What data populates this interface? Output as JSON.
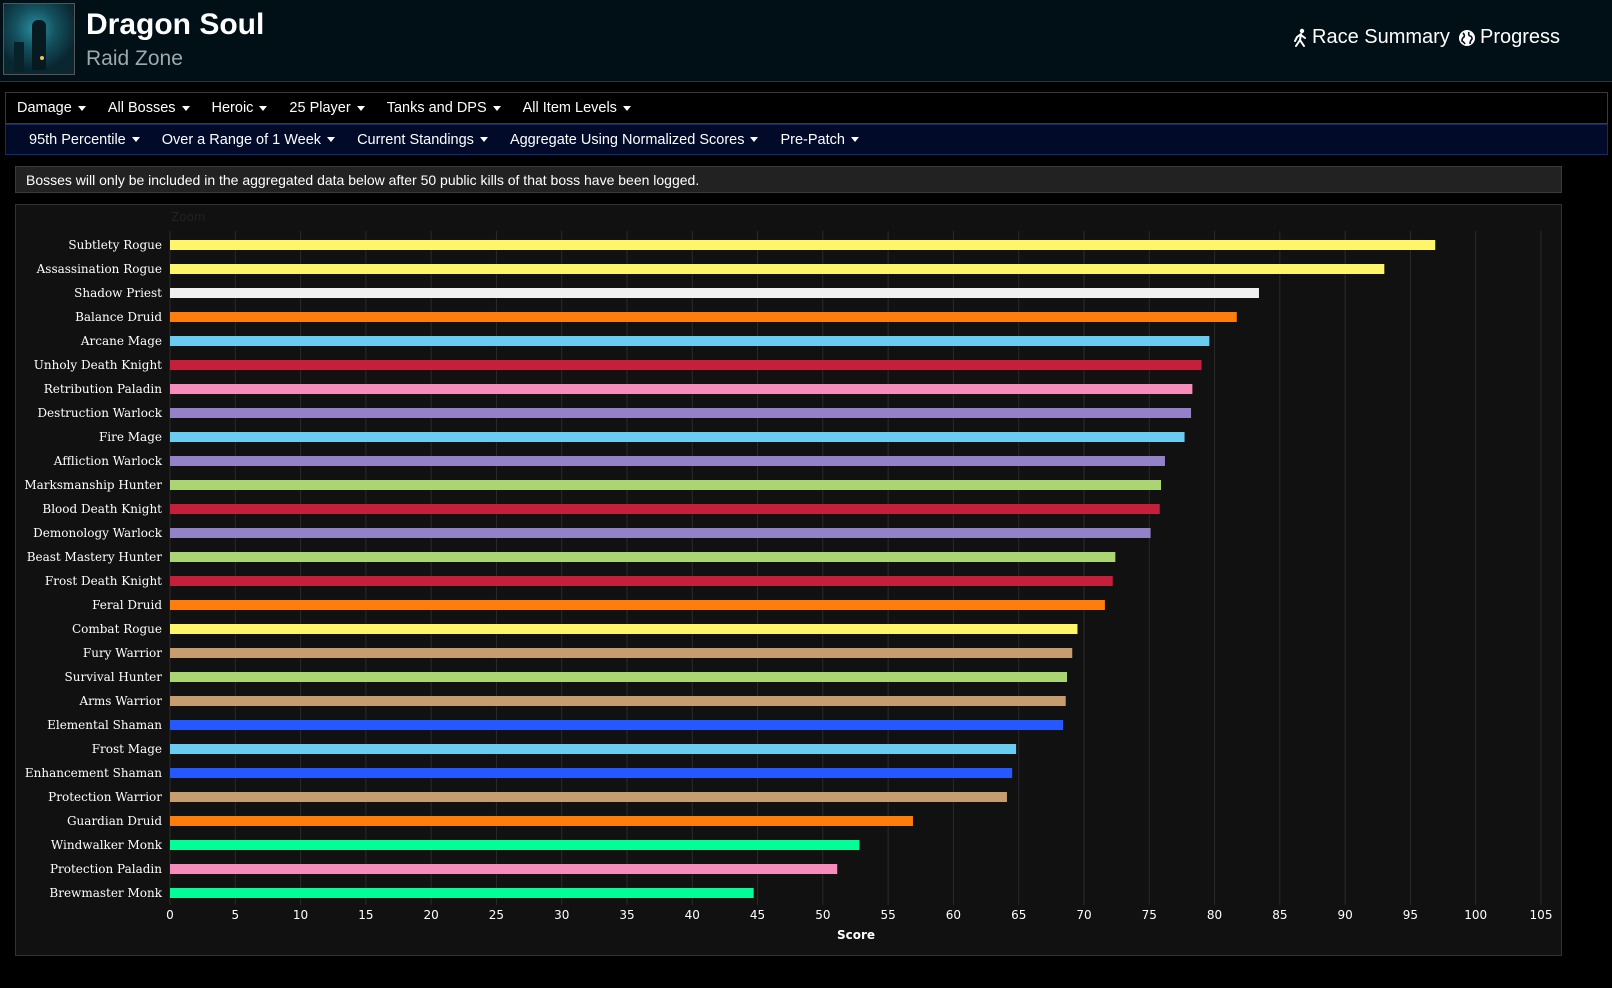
{
  "header": {
    "title": "Dragon Soul",
    "subtitle": "Raid Zone",
    "race_summary_label": "Race Summary",
    "progress_label": "Progress"
  },
  "menu_primary": [
    "Damage",
    "All Bosses",
    "Heroic",
    "25 Player",
    "Tanks and DPS",
    "All Item Levels"
  ],
  "menu_secondary": [
    "95th Percentile",
    "Over a Range of 1 Week",
    "Current Standings",
    "Aggregate Using Normalized Scores",
    "Pre-Patch"
  ],
  "notice": "Bosses will only be included in the aggregated data below after 50 public kills of that boss have been logged.",
  "chart_data": {
    "type": "bar",
    "orientation": "horizontal",
    "zoom_label": "Zoom",
    "xlabel": "Score",
    "xlim": [
      0,
      105
    ],
    "xticks": [
      0,
      5,
      10,
      15,
      20,
      25,
      30,
      35,
      40,
      45,
      50,
      55,
      60,
      65,
      70,
      75,
      80,
      85,
      90,
      95,
      100,
      105
    ],
    "grid": true,
    "categories": [
      "Subtlety Rogue",
      "Assassination Rogue",
      "Shadow Priest",
      "Balance Druid",
      "Arcane Mage",
      "Unholy Death Knight",
      "Retribution Paladin",
      "Destruction Warlock",
      "Fire Mage",
      "Affliction Warlock",
      "Marksmanship Hunter",
      "Blood Death Knight",
      "Demonology Warlock",
      "Beast Mastery Hunter",
      "Frost Death Knight",
      "Feral Druid",
      "Combat Rogue",
      "Fury Warrior",
      "Survival Hunter",
      "Arms Warrior",
      "Elemental Shaman",
      "Frost Mage",
      "Enhancement Shaman",
      "Protection Warrior",
      "Guardian Druid",
      "Windwalker Monk",
      "Protection Paladin",
      "Brewmaster Monk"
    ],
    "values": [
      96.9,
      93.0,
      83.4,
      81.7,
      79.6,
      79.0,
      78.3,
      78.2,
      77.7,
      76.2,
      75.9,
      75.8,
      75.1,
      72.4,
      72.2,
      71.6,
      69.5,
      69.1,
      68.7,
      68.6,
      68.4,
      64.8,
      64.5,
      64.1,
      56.9,
      52.8,
      51.1,
      44.7
    ],
    "colors": [
      "#fff569",
      "#fff569",
      "#f0f0f0",
      "#ff7d0a",
      "#69ccf0",
      "#c41f3b",
      "#f58cba",
      "#9482c9",
      "#69ccf0",
      "#9482c9",
      "#abd473",
      "#c41f3b",
      "#9482c9",
      "#abd473",
      "#c41f3b",
      "#ff7d0a",
      "#fff569",
      "#c79c6e",
      "#abd473",
      "#c79c6e",
      "#2459ff",
      "#69ccf0",
      "#2459ff",
      "#c79c6e",
      "#ff7d0a",
      "#00ff96",
      "#f58cba",
      "#00ff96"
    ]
  }
}
